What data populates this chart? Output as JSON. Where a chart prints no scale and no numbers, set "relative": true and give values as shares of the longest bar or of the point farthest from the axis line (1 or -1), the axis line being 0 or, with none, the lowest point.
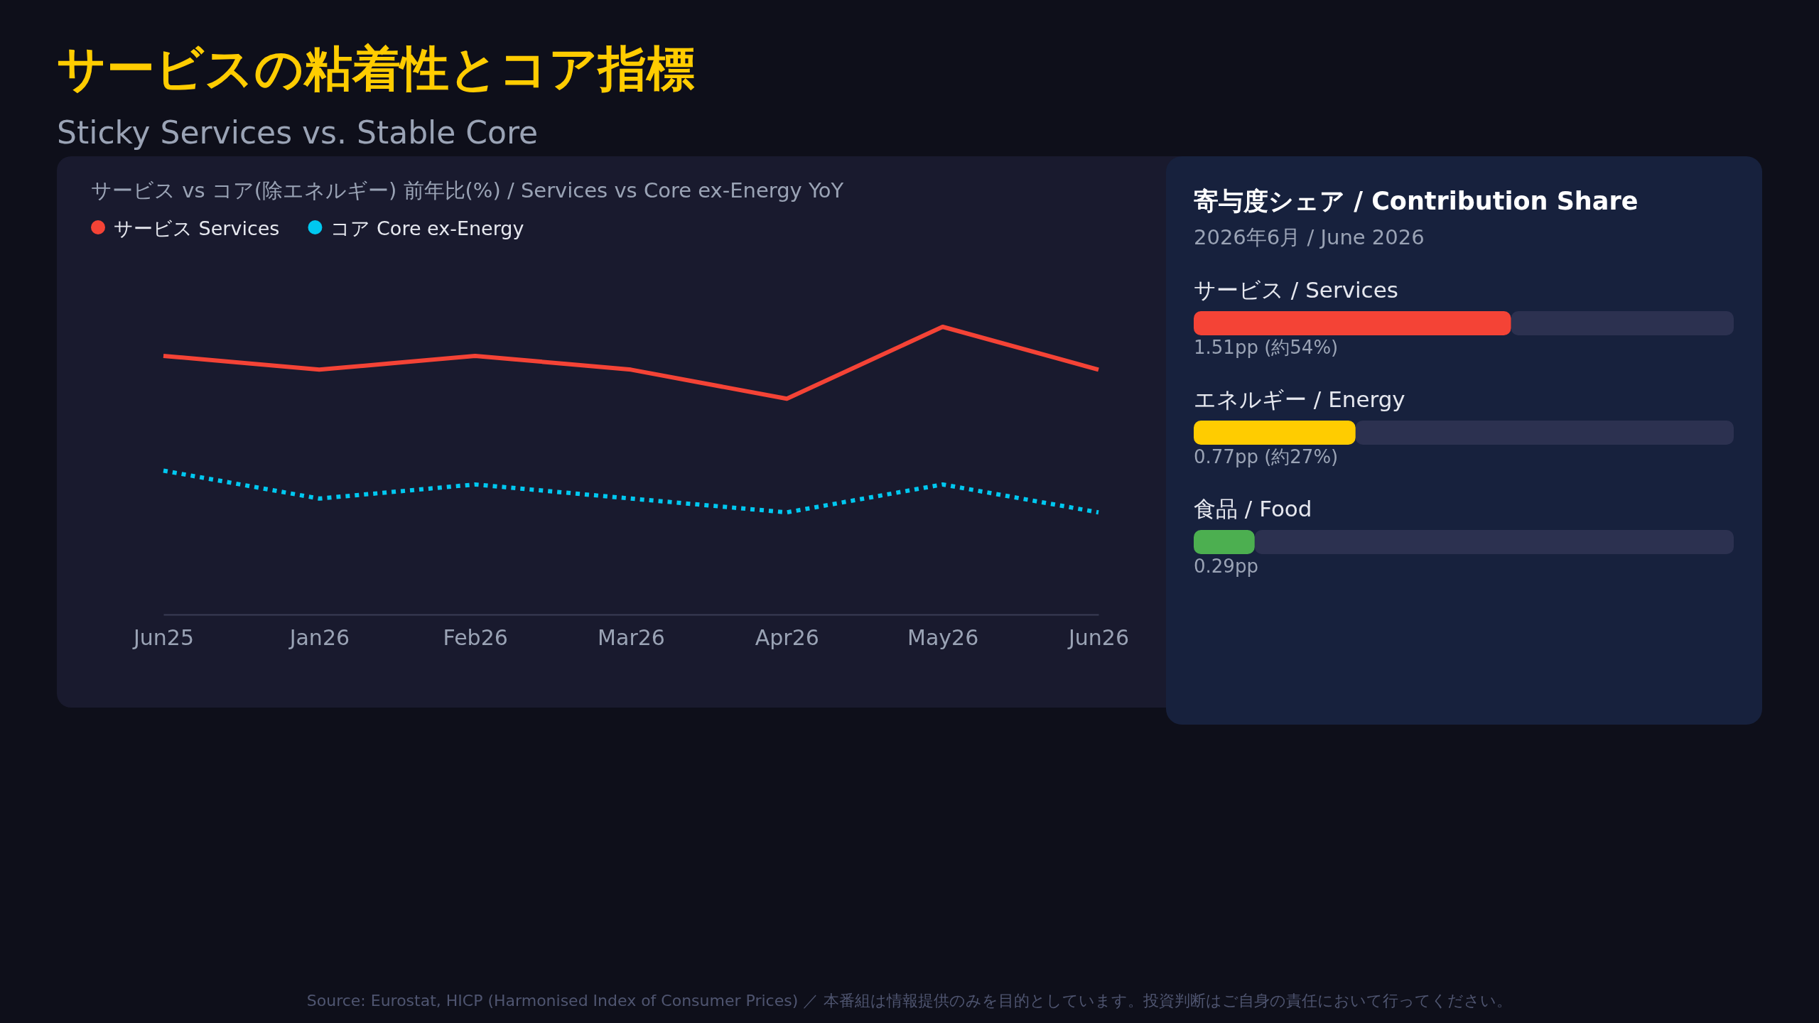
{
  "chart_data": [
    {
      "type": "line",
      "title": "サービスの粘着性とコア指標",
      "subtitle": "Sticky Services vs. Stable Core",
      "relative": true,
      "legend": "top left",
      "categories": [
        "Jun25",
        "Jan26",
        "Feb26",
        "Mar26",
        "Apr26",
        "May26",
        "Jun26"
      ],
      "series": [
        {
          "name": "サービス Services",
          "color": "#f44336",
          "line_style": "solid",
          "values": [
            0.899,
            0.851,
            0.899,
            0.851,
            0.75,
            1,
            0.851
          ]
        },
        {
          "name": "コア Core ex-Energy",
          "color": "#00c8f0",
          "line_style": "dotted",
          "values": [
            0.5,
            0.403,
            0.452,
            0.403,
            0.355,
            0.452,
            0.355
          ]
        }
      ],
      "annotations": [
        "サービス vs コア(除エネルギー) 前年比(%) / Services vs Core ex-Energy YoY",
        "Source: Eurostat, HICP (Harmonised Index of Consumer Prices) ／ 本番組は情報提供のみを目的としています。投資判断はご自身の責任において行ってください。"
      ]
    },
    {
      "type": "bar",
      "orientation": "horizontal",
      "title": "寄与度シェア / Contribution Share",
      "subtitle": "2026年6月 / June 2026",
      "tick_labels": false,
      "categories": [
        "サービス / Services",
        "エネルギー / Energy",
        "食品 / Food"
      ],
      "values": [
        1.51,
        0.77,
        0.29
      ],
      "colors": [
        "#f44336",
        "#ffcc00",
        "#4caf50"
      ],
      "value_labels": [
        "1.51pp (約54%)",
        "0.77pp (約27%)",
        "0.29pp"
      ]
    }
  ]
}
